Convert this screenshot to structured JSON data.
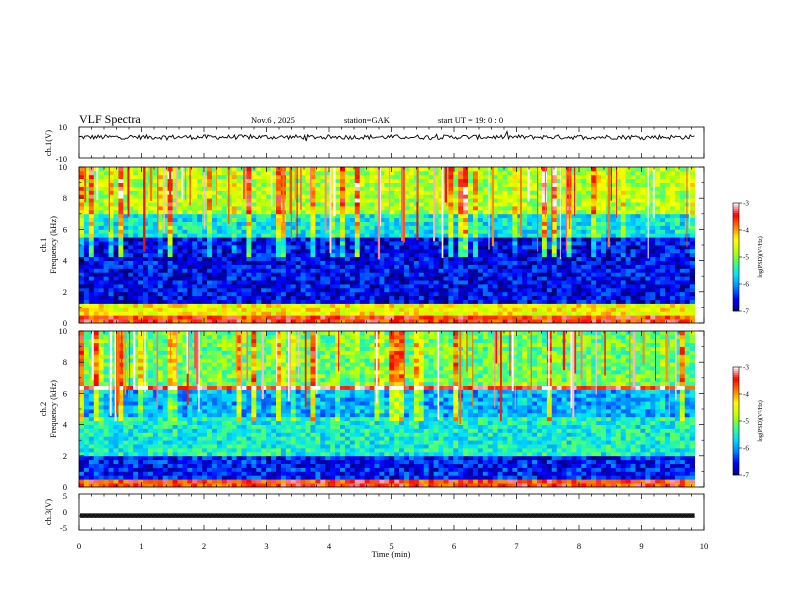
{
  "header": {
    "title": "VLF  Spectra",
    "date": "Nov.6  , 2025",
    "station": "station=GAK",
    "start": "start  UT =   19: 0  : 0"
  },
  "chart_data": [
    {
      "type": "line",
      "panel": "ch1-waveform",
      "ylabel": "ch.1(V)",
      "ylim": [
        -10,
        10
      ],
      "yticks": [
        "10",
        "-10"
      ],
      "baseline_v": 3.5,
      "amplitude_v": 1.5,
      "color": "#000000"
    },
    {
      "type": "heatmap",
      "panel": "ch1-spectrogram",
      "ylabel": "ch.1\nFrequency  (kHz)",
      "ylim": [
        0,
        10
      ],
      "yticks": [
        "0",
        "2",
        "4",
        "6",
        "8",
        "10"
      ],
      "colorbar": {
        "label": "log(PSD)(V²/Hz)",
        "range": [
          -7,
          -3
        ],
        "ticks": [
          "-3",
          "-4",
          "-5",
          "-6",
          "-7"
        ]
      },
      "bands_khz": [
        {
          "from": 0,
          "to": 0.6,
          "level": -3.6
        },
        {
          "from": 0.6,
          "to": 1.2,
          "level": -4.4
        },
        {
          "from": 1.2,
          "to": 5.5,
          "level": -6.6
        },
        {
          "from": 5.5,
          "to": 7.0,
          "level": -5.6
        },
        {
          "from": 7.0,
          "to": 10.0,
          "level": -4.8
        }
      ]
    },
    {
      "type": "heatmap",
      "panel": "ch2-spectrogram",
      "ylabel": "ch.2\nFrequency  (kHz)",
      "ylim": [
        0,
        10
      ],
      "yticks": [
        "0",
        "2",
        "4",
        "6",
        "8",
        "10"
      ],
      "colorbar": {
        "label": "log(PSD)(V²/Hz)",
        "range": [
          -7,
          -3
        ],
        "ticks": [
          "-3",
          "-4",
          "-5",
          "-6",
          "-7"
        ]
      },
      "bands_khz": [
        {
          "from": 0,
          "to": 0.4,
          "level": -3.6
        },
        {
          "from": 0.4,
          "to": 2.0,
          "level": -6.5
        },
        {
          "from": 2.0,
          "to": 4.5,
          "level": -5.5
        },
        {
          "from": 4.5,
          "to": 6.2,
          "level": -5.9
        },
        {
          "from": 6.2,
          "to": 6.4,
          "level": -3.4
        },
        {
          "from": 6.4,
          "to": 10.0,
          "level": -5.1
        }
      ]
    },
    {
      "type": "line",
      "panel": "ch3-waveform",
      "ylabel": "ch.3(V)",
      "ylim": [
        -5,
        5
      ],
      "yticks": [
        "5",
        "0",
        "-5"
      ],
      "baseline_v": -1.0,
      "amplitude_v": 0.3,
      "color": "#000000"
    }
  ],
  "xaxis": {
    "label": "Time  (min)",
    "xlim": [
      0,
      10
    ],
    "ticks": [
      "0",
      "1",
      "2",
      "3",
      "4",
      "5",
      "6",
      "7",
      "8",
      "9",
      "10"
    ],
    "data_end_min": 9.85
  },
  "colormap": [
    "#00007a",
    "#0000ff",
    "#0088ff",
    "#00e0ff",
    "#40ff80",
    "#c0ff00",
    "#ffff00",
    "#ff8000",
    "#ff0000",
    "#ffffff"
  ]
}
